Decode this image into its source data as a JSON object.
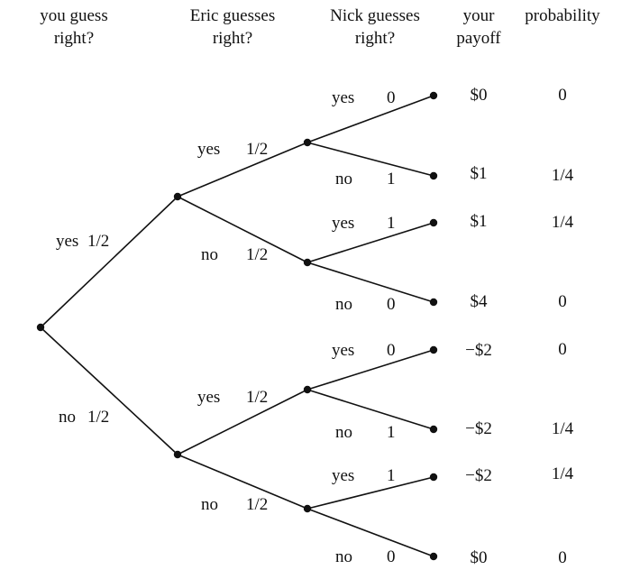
{
  "headers": {
    "you_line1": "you guess",
    "you_line2": "right?",
    "eric_line1": "Eric guesses",
    "eric_line2": "right?",
    "nick_line1": "Nick guesses",
    "nick_line2": "right?",
    "payoff_line1": "your",
    "payoff_line2": "payoff",
    "probability": "probability"
  },
  "level1": [
    {
      "label": "yes",
      "prob": "1/2"
    },
    {
      "label": "no",
      "prob": "1/2"
    }
  ],
  "level2": [
    {
      "label": "yes",
      "prob": "1/2"
    },
    {
      "label": "no",
      "prob": "1/2"
    },
    {
      "label": "yes",
      "prob": "1/2"
    },
    {
      "label": "no",
      "prob": "1/2"
    }
  ],
  "outcomes": [
    {
      "nick": "yes",
      "nick_prob": "0",
      "payoff": "$0",
      "probability": "0"
    },
    {
      "nick": "no",
      "nick_prob": "1",
      "payoff": "$1",
      "probability": "1/4"
    },
    {
      "nick": "yes",
      "nick_prob": "1",
      "payoff": "$1",
      "probability": "1/4"
    },
    {
      "nick": "no",
      "nick_prob": "0",
      "payoff": "$4",
      "probability": "0"
    },
    {
      "nick": "yes",
      "nick_prob": "0",
      "payoff": "−$2",
      "probability": "0"
    },
    {
      "nick": "no",
      "nick_prob": "1",
      "payoff": "−$2",
      "probability": "1/4"
    },
    {
      "nick": "yes",
      "nick_prob": "1",
      "payoff": "−$2",
      "probability": "1/4"
    },
    {
      "nick": "no",
      "nick_prob": "0",
      "payoff": "$0",
      "probability": "0"
    }
  ]
}
